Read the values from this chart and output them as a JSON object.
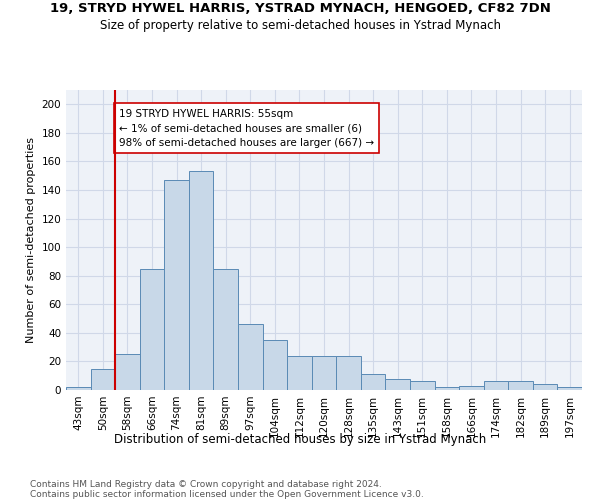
{
  "title": "19, STRYD HYWEL HARRIS, YSTRAD MYNACH, HENGOED, CF82 7DN",
  "subtitle": "Size of property relative to semi-detached houses in Ystrad Mynach",
  "xlabel": "Distribution of semi-detached houses by size in Ystrad Mynach",
  "ylabel": "Number of semi-detached properties",
  "categories": [
    "43sqm",
    "50sqm",
    "58sqm",
    "66sqm",
    "74sqm",
    "81sqm",
    "89sqm",
    "97sqm",
    "104sqm",
    "112sqm",
    "120sqm",
    "128sqm",
    "135sqm",
    "143sqm",
    "151sqm",
    "158sqm",
    "166sqm",
    "174sqm",
    "182sqm",
    "189sqm",
    "197sqm"
  ],
  "values": [
    2,
    15,
    25,
    85,
    147,
    153,
    85,
    46,
    35,
    24,
    24,
    24,
    11,
    8,
    6,
    2,
    3,
    6,
    6,
    4,
    2
  ],
  "bar_color": "#c8d8e8",
  "bar_edge_color": "#5a8ab5",
  "bar_width": 1.0,
  "vline_color": "#cc0000",
  "annotation_text": "19 STRYD HYWEL HARRIS: 55sqm\n← 1% of semi-detached houses are smaller (6)\n98% of semi-detached houses are larger (667) →",
  "annotation_box_color": "white",
  "annotation_box_edge": "#cc0000",
  "ylim": [
    0,
    210
  ],
  "yticks": [
    0,
    20,
    40,
    60,
    80,
    100,
    120,
    140,
    160,
    180,
    200
  ],
  "grid_color": "#d0d8e8",
  "background_color": "#eef2f8",
  "footer_text": "Contains HM Land Registry data © Crown copyright and database right 2024.\nContains public sector information licensed under the Open Government Licence v3.0.",
  "title_fontsize": 9.5,
  "subtitle_fontsize": 8.5,
  "xlabel_fontsize": 8.5,
  "ylabel_fontsize": 8,
  "tick_fontsize": 7.5,
  "annotation_fontsize": 7.5,
  "footer_fontsize": 6.5
}
